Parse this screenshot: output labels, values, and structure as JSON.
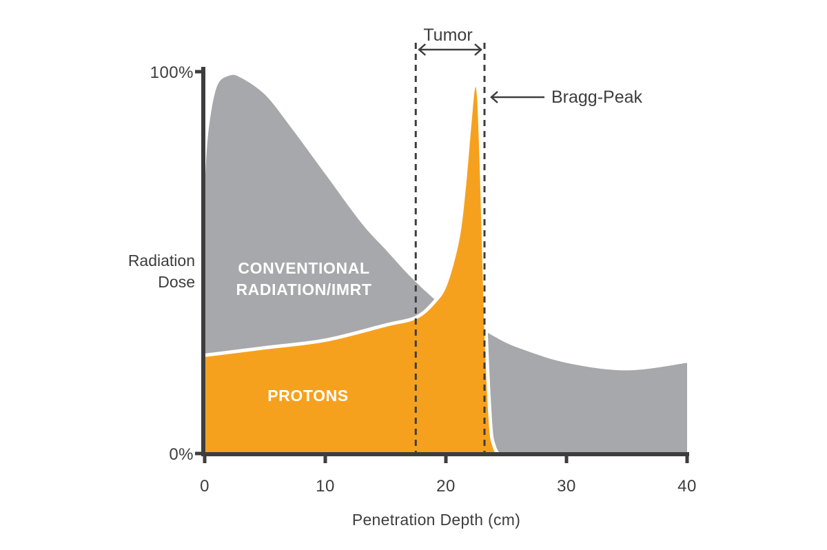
{
  "chart_data": {
    "type": "area",
    "xlabel": "Penetration Depth (cm)",
    "ylabel_lines": [
      "Radiation",
      "Dose"
    ],
    "x_ticks": [
      "0",
      "10",
      "20",
      "30",
      "40"
    ],
    "y_ticks": [
      "0%",
      "100%"
    ],
    "xlim": [
      0,
      40
    ],
    "ylim": [
      0,
      100
    ],
    "grid": false,
    "legend": "none",
    "series": [
      {
        "label_lines": [
          "CONVENTIONAL",
          "RADIATION/IMRT"
        ],
        "color": "#a7a8ab",
        "x": [
          0,
          0.3,
          1,
          2,
          3,
          5,
          7,
          10,
          13,
          15,
          17,
          19,
          20,
          22,
          24,
          26,
          30,
          35,
          40
        ],
        "y": [
          70,
          85,
          97,
          100,
          99.5,
          95,
          87,
          74,
          61,
          54,
          47,
          41,
          39,
          35,
          31,
          28,
          24,
          22,
          24
        ]
      },
      {
        "name": "PROTONS",
        "color": "#f6a11e",
        "x": [
          0,
          5,
          10,
          15,
          17.5,
          19,
          20,
          21,
          21.5,
          22,
          22.3,
          22.7,
          23,
          23.3,
          23.7,
          24,
          24.3
        ],
        "y": [
          26,
          28,
          30,
          34,
          36,
          40,
          45,
          57,
          70,
          88,
          97,
          95,
          70,
          35,
          8,
          2,
          0
        ]
      }
    ],
    "annotations": {
      "tumor": {
        "label": "Tumor",
        "x_start": 17.5,
        "x_end": 23.2
      },
      "bragg_peak": {
        "label": "Bragg-Peak",
        "x": 23.2
      }
    },
    "colors": {
      "axis": "#3d3d3d",
      "text": "#3d3d3d",
      "conventional": "#a7a8ab",
      "protons": "#f6a11e",
      "separator": "#ffffff"
    }
  }
}
